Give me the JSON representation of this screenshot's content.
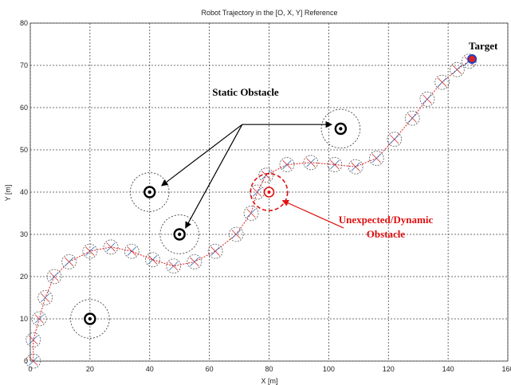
{
  "chart_data": {
    "type": "scatter",
    "title": "Robot Trajectory in the [O, X, Y] Reference",
    "xlabel": "X [m]",
    "ylabel": "Y [m]",
    "xlim": [
      0,
      160
    ],
    "ylim": [
      0,
      80
    ],
    "xticks": [
      0,
      20,
      40,
      60,
      80,
      100,
      120,
      140,
      160
    ],
    "yticks": [
      0,
      10,
      20,
      30,
      40,
      50,
      60,
      70,
      80
    ],
    "grid": true,
    "trajectory_color": "#e02020",
    "robot_positions": [
      [
        1,
        0
      ],
      [
        1,
        5
      ],
      [
        3,
        10
      ],
      [
        5,
        15
      ],
      [
        8,
        20
      ],
      [
        13,
        23.5
      ],
      [
        20,
        26
      ],
      [
        27,
        27
      ],
      [
        34,
        26
      ],
      [
        41,
        24
      ],
      [
        48,
        22.5
      ],
      [
        55,
        23.5
      ],
      [
        62,
        26
      ],
      [
        69,
        30
      ],
      [
        74,
        35
      ],
      [
        76,
        40
      ],
      [
        79,
        44
      ],
      [
        86,
        46.5
      ],
      [
        94,
        47
      ],
      [
        102,
        46.5
      ],
      [
        109,
        46
      ],
      [
        116,
        48
      ],
      [
        122,
        52.5
      ],
      [
        128,
        57.5
      ],
      [
        133,
        62
      ],
      [
        138,
        66
      ],
      [
        143,
        69
      ],
      [
        147,
        71
      ]
    ],
    "static_obstacles": [
      {
        "x": 20,
        "y": 10,
        "color": "#000000"
      },
      {
        "x": 40,
        "y": 40,
        "color": "#000000"
      },
      {
        "x": 50,
        "y": 30,
        "color": "#000000"
      },
      {
        "x": 104,
        "y": 55,
        "color": "#000000"
      }
    ],
    "dynamic_obstacle": {
      "x": 80,
      "y": 40,
      "color": "#e01010"
    },
    "target": {
      "x": 148,
      "y": 71.5,
      "fill": "#e02020",
      "stroke": "#2040c0"
    },
    "annotations": {
      "static_label": "Static Obstacle",
      "target_label": "Target",
      "dynamic_label_line1": "Unexpected/Dynamic",
      "dynamic_label_line2": "Obstacle"
    }
  }
}
